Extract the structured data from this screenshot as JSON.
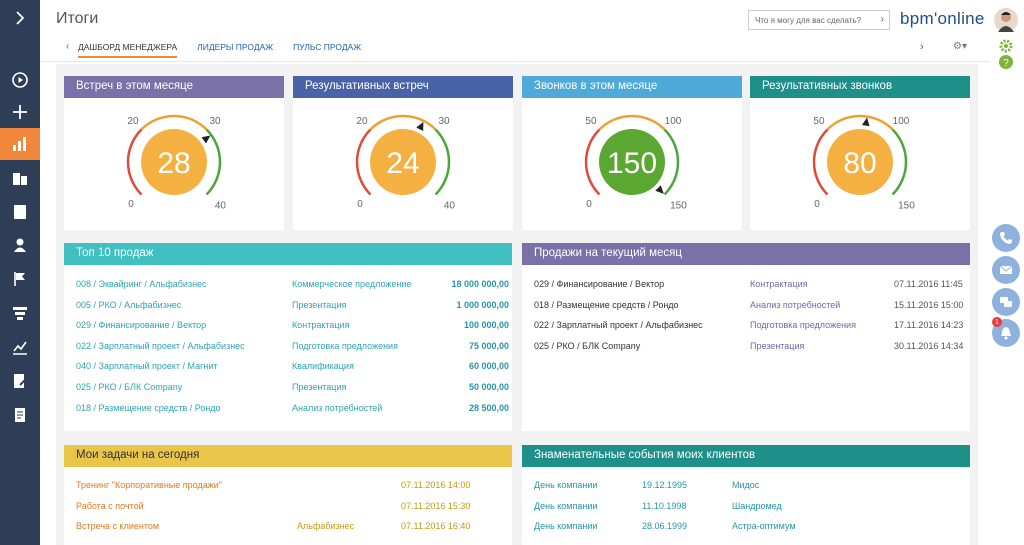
{
  "header": {
    "title": "Итоги",
    "search_placeholder": "Что я могу для вас сделать?",
    "brand": "bpm'online",
    "tabs": [
      {
        "label": "ДАШБОРД МЕНЕДЖЕРА",
        "active": true
      },
      {
        "label": "ЛИДЕРЫ ПРОДАЖ",
        "active": false
      },
      {
        "label": "ПУЛЬС ПРОДАЖ",
        "active": false
      }
    ]
  },
  "nav": {
    "icons": [
      "chevron-right-icon",
      "play-icon",
      "plus-icon",
      "bar-chart-icon",
      "accounts-icon",
      "building-icon",
      "contact-icon",
      "flag-icon",
      "funnel-icon",
      "analytics-icon",
      "edit-document-icon",
      "document-icon"
    ],
    "active": "bar-chart-icon"
  },
  "right_panel": {
    "icons": [
      "user-avatar",
      "gear-icon",
      "help-icon",
      "phone-icon",
      "email-icon",
      "chat-icon",
      "bell-icon"
    ],
    "bell_badge": "1"
  },
  "gauges": [
    {
      "title": "Встреч в этом месяце",
      "value": "28",
      "min": "0",
      "max": "40",
      "mark1": "20",
      "mark2": "30",
      "color": "#7a71a8",
      "circle": "#f5b042",
      "numeric": {
        "value": 28,
        "min": 0,
        "max": 40
      }
    },
    {
      "title": "Результативных встреч",
      "value": "24",
      "min": "0",
      "max": "40",
      "mark1": "20",
      "mark2": "30",
      "color": "#4a63a8",
      "circle": "#f5b042",
      "numeric": {
        "value": 24,
        "min": 0,
        "max": 40
      }
    },
    {
      "title": "Звонков в этом месяце",
      "value": "150",
      "min": "0",
      "max": "150",
      "mark1": "50",
      "mark2": "100",
      "color": "#4fa9d9",
      "circle": "#5aa832",
      "numeric": {
        "value": 150,
        "min": 0,
        "max": 150
      }
    },
    {
      "title": "Результативных звонков",
      "value": "80",
      "min": "0",
      "max": "150",
      "mark1": "50",
      "mark2": "100",
      "color": "#1f8f89",
      "circle": "#f5b042",
      "numeric": {
        "value": 80,
        "min": 0,
        "max": 150
      }
    }
  ],
  "top_sales": {
    "title": "Топ 10 продаж",
    "color": "#40c0c0",
    "rows": [
      {
        "name": "008 / Эквайринг / Альфабизнес",
        "stage": "Коммерческое предложение",
        "amount": "18 000 000,00"
      },
      {
        "name": "005 / РКО / Альфабизнес",
        "stage": "Презентация",
        "amount": "1 000 000,00"
      },
      {
        "name": "029 / Финансирование / Вектор",
        "stage": "Контрактация",
        "amount": "100 000,00"
      },
      {
        "name": "022 / Зарплатный проект / Альфабизнес",
        "stage": "Подготовка предложения",
        "amount": "75 000,00"
      },
      {
        "name": "040 / Зарплатный проект / Магнит",
        "stage": "Квалификация",
        "amount": "60 000,00"
      },
      {
        "name": "025 / РКО / БЛК Company",
        "stage": "Презентация",
        "amount": "50 000,00"
      },
      {
        "name": "018 / Размещение средств / Рондо",
        "stage": "Анализ потребностей",
        "amount": "28 500,00"
      }
    ]
  },
  "month_sales": {
    "title": "Продажи на текущий месяц",
    "color": "#7a71a8",
    "rows": [
      {
        "name": "029 / Финансирование / Вектор",
        "stage": "Контрактация",
        "date": "07.11.2016 11:45"
      },
      {
        "name": "018 / Размещение средств / Рондо",
        "stage": "Анализ потребностей",
        "date": "15.11.2016 15:00"
      },
      {
        "name": "022 / Зарплатный проект / Альфабизнес",
        "stage": "Подготовка предложения",
        "date": "17.11.2016 14:23"
      },
      {
        "name": "025 / РКО / БЛК Company",
        "stage": "Презентация",
        "date": "30.11.2016 14:34"
      }
    ]
  },
  "tasks": {
    "title": "Мои задачи на сегодня",
    "color": "#e9c54a",
    "rows": [
      {
        "name": "Тренинг \"Корпоративные продажи\"",
        "account": "",
        "date": "07.11.2016 14:00"
      },
      {
        "name": "Работа с почтой",
        "account": "",
        "date": "07.11.2016 15:30"
      },
      {
        "name": "Встреча с клиентом",
        "account": "Альфабизнес",
        "date": "07.11.2016 16:40"
      }
    ]
  },
  "events": {
    "title": "Знаменательные события моих клиентов",
    "color": "#1f8f89",
    "rows": [
      {
        "event": "День компании",
        "date": "19.12.1995",
        "client": "Мидос"
      },
      {
        "event": "День компании",
        "date": "11.10.1998",
        "client": "Шандромед"
      },
      {
        "event": "День компании",
        "date": "28.06.1999",
        "client": "Астра-оптимум"
      }
    ]
  }
}
